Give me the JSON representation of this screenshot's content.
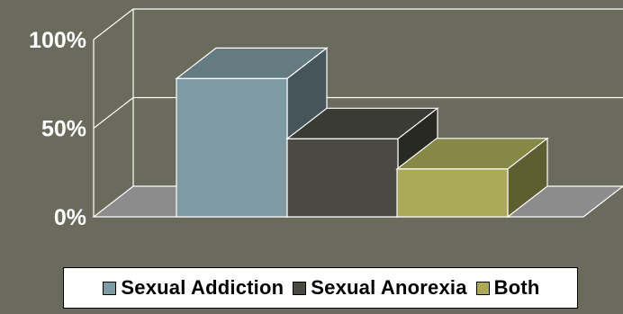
{
  "chart_data": {
    "type": "bar",
    "style": "3d",
    "title": "",
    "xlabel": "",
    "ylabel": "",
    "ylim": [
      0,
      100
    ],
    "y_ticks": [
      "0%",
      "50%",
      "100%"
    ],
    "grid": true,
    "legend_position": "bottom",
    "series": [
      {
        "name": "Sexual Addiction",
        "values": [
          78
        ],
        "color": "#7e9aa3"
      },
      {
        "name": "Sexual Anorexia",
        "values": [
          44
        ],
        "color": "#4a4a42"
      },
      {
        "name": "Both",
        "values": [
          27
        ],
        "color": "#aaaa58"
      }
    ]
  },
  "colors": {
    "background": "#6b6b5d",
    "floor": "#8c8c8c",
    "grid": "#ffffff"
  }
}
